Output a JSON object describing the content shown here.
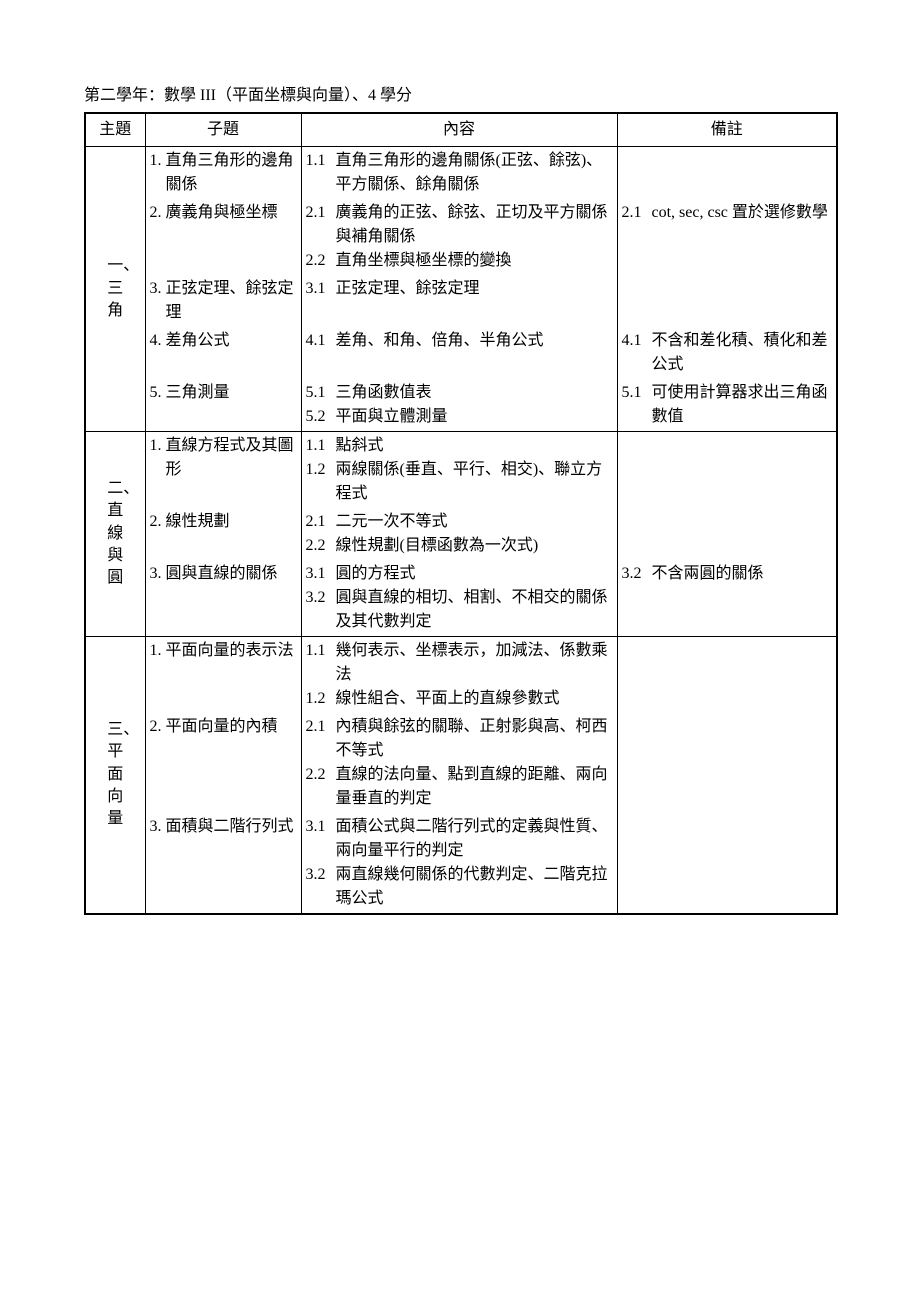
{
  "title": "第二學年：數學 III（平面坐標與向量）、4 學分",
  "headers": {
    "c1": "主題",
    "c2": "子題",
    "c3": "內容",
    "c4": "備註"
  },
  "sections": [
    {
      "topic": "一、三角",
      "subs": [
        {
          "n": "1.",
          "t": "直角三角形的邊角關係",
          "content": [
            {
              "n": "1.1",
              "t": "直角三角形的邊角關係(正弦、餘弦)、平方關係、餘角關係"
            }
          ],
          "note": []
        },
        {
          "n": "2.",
          "t": "廣義角與極坐標",
          "content": [
            {
              "n": "2.1",
              "t": "廣義角的正弦、餘弦、正切及平方關係與補角關係"
            },
            {
              "n": "2.2",
              "t": "直角坐標與極坐標的變換"
            }
          ],
          "note": [
            {
              "n": "2.1",
              "t": "cot, sec, csc 置於選修數學"
            }
          ]
        },
        {
          "n": "3.",
          "t": "正弦定理、餘弦定理",
          "content": [
            {
              "n": "3.1",
              "t": "正弦定理、餘弦定理"
            }
          ],
          "note": []
        },
        {
          "n": "4.",
          "t": "差角公式",
          "content": [
            {
              "n": "4.1",
              "t": "差角、和角、倍角、半角公式"
            }
          ],
          "note": [
            {
              "n": "4.1",
              "t": "不含和差化積、積化和差公式"
            }
          ]
        },
        {
          "n": "5.",
          "t": "三角測量",
          "content": [
            {
              "n": "5.1",
              "t": "三角函數值表"
            },
            {
              "n": "5.2",
              "t": "平面與立體測量"
            }
          ],
          "note": [
            {
              "n": "5.1",
              "t": "可使用計算器求出三角函數值"
            }
          ]
        }
      ]
    },
    {
      "topic": "二、直線與圓",
      "subs": [
        {
          "n": "1.",
          "t": "直線方程式及其圖形",
          "content": [
            {
              "n": "1.1",
              "t": "點斜式"
            },
            {
              "n": "1.2",
              "t": "兩線關係(垂直、平行、相交)、聯立方程式"
            }
          ],
          "note": []
        },
        {
          "n": "2.",
          "t": "線性規劃",
          "content": [
            {
              "n": "2.1",
              "t": "二元一次不等式"
            },
            {
              "n": "2.2",
              "t": "線性規劃(目標函數為一次式)"
            }
          ],
          "note": []
        },
        {
          "n": "3.",
          "t": "圓與直線的關係",
          "content": [
            {
              "n": "3.1",
              "t": "圓的方程式"
            },
            {
              "n": "3.2",
              "t": "圓與直線的相切、相割、不相交的關係及其代數判定"
            }
          ],
          "note": [
            {
              "n": "3.2",
              "t": "不含兩圓的關係"
            }
          ]
        }
      ]
    },
    {
      "topic": "三、平面向量",
      "subs": [
        {
          "n": "1.",
          "t": "平面向量的表示法",
          "content": [
            {
              "n": "1.1",
              "t": "幾何表示、坐標表示，加減法、係數乘法"
            },
            {
              "n": "1.2",
              "t": "線性組合、平面上的直線參數式"
            }
          ],
          "note": []
        },
        {
          "n": "2.",
          "t": "平面向量的內積",
          "content": [
            {
              "n": "2.1",
              "t": "內積與餘弦的關聯、正射影與高、柯西不等式"
            },
            {
              "n": "2.2",
              "t": "直線的法向量、點到直線的距離、兩向量垂直的判定"
            }
          ],
          "note": []
        },
        {
          "n": "3.",
          "t": "面積與二階行列式",
          "content": [
            {
              "n": "3.1",
              "t": "面積公式與二階行列式的定義與性質、兩向量平行的判定"
            },
            {
              "n": "3.2",
              "t": "兩直線幾何關係的代數判定、二階克拉瑪公式"
            }
          ],
          "note": []
        }
      ]
    }
  ]
}
